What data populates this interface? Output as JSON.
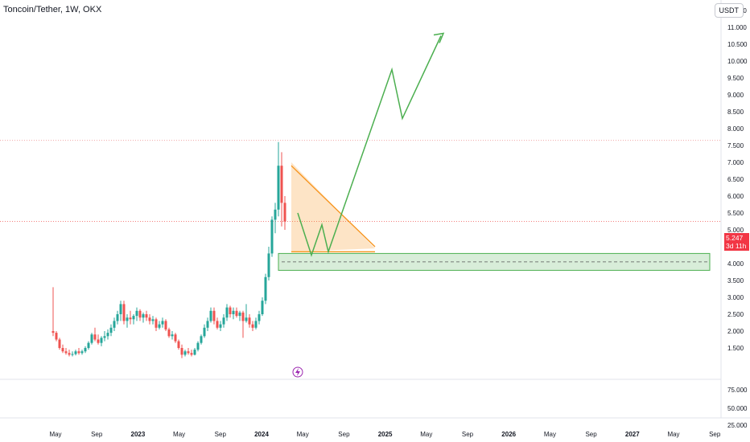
{
  "header": {
    "title": "Toncoin/Tether, 1W, OKX"
  },
  "currency": "USDT",
  "last_price": {
    "value": "5.247",
    "countdown": "3d 11h",
    "color": "#f23645"
  },
  "colors": {
    "up": "#26a69a",
    "down": "#ef5350",
    "triangle": "#f7931a",
    "path": "#4caf50",
    "zone": "#4caf50"
  },
  "chart_data": {
    "type": "candlestick",
    "price_axis": {
      "upper_ticks": [
        "1.500",
        "2.000",
        "2.500",
        "3.000",
        "3.500",
        "4.000",
        "4.500",
        "5.000",
        "5.500",
        "6.000",
        "6.500",
        "7.000",
        "7.500",
        "8.000",
        "8.500",
        "9.000",
        "9.500",
        "10.000",
        "10.500",
        "11.000",
        "11.500"
      ],
      "lower_ticks": [
        "25.000",
        "50.000",
        "75.000"
      ]
    },
    "time_axis": [
      {
        "label": "May"
      },
      {
        "label": "Sep"
      },
      {
        "label": "2023",
        "bold": true
      },
      {
        "label": "May"
      },
      {
        "label": "Sep"
      },
      {
        "label": "2024",
        "bold": true
      },
      {
        "label": "May"
      },
      {
        "label": "Sep"
      },
      {
        "label": "2025",
        "bold": true
      },
      {
        "label": "May"
      },
      {
        "label": "Sep"
      },
      {
        "label": "2026",
        "bold": true
      },
      {
        "label": "May"
      },
      {
        "label": "Sep"
      },
      {
        "label": "2027",
        "bold": true
      },
      {
        "label": "May"
      },
      {
        "label": "Sep"
      }
    ],
    "ohlc": [
      [
        2.0,
        3.3,
        1.85,
        1.95
      ],
      [
        1.95,
        2.0,
        1.7,
        1.75
      ],
      [
        1.75,
        1.8,
        1.45,
        1.5
      ],
      [
        1.5,
        1.6,
        1.35,
        1.4
      ],
      [
        1.4,
        1.5,
        1.3,
        1.35
      ],
      [
        1.35,
        1.45,
        1.25,
        1.3
      ],
      [
        1.3,
        1.4,
        1.25,
        1.32
      ],
      [
        1.32,
        1.45,
        1.28,
        1.4
      ],
      [
        1.4,
        1.5,
        1.3,
        1.35
      ],
      [
        1.35,
        1.45,
        1.3,
        1.4
      ],
      [
        1.4,
        1.55,
        1.35,
        1.5
      ],
      [
        1.5,
        1.7,
        1.45,
        1.65
      ],
      [
        1.65,
        1.95,
        1.6,
        1.9
      ],
      [
        1.9,
        2.1,
        1.7,
        1.75
      ],
      [
        1.75,
        1.9,
        1.6,
        1.65
      ],
      [
        1.65,
        1.85,
        1.55,
        1.8
      ],
      [
        1.8,
        2.0,
        1.7,
        1.85
      ],
      [
        1.85,
        2.05,
        1.75,
        1.95
      ],
      [
        1.95,
        2.2,
        1.85,
        2.1
      ],
      [
        2.1,
        2.4,
        2.0,
        2.3
      ],
      [
        2.3,
        2.6,
        2.2,
        2.5
      ],
      [
        2.5,
        2.9,
        2.3,
        2.8
      ],
      [
        2.8,
        2.9,
        2.2,
        2.3
      ],
      [
        2.3,
        2.5,
        2.1,
        2.4
      ],
      [
        2.4,
        2.6,
        2.2,
        2.35
      ],
      [
        2.35,
        2.5,
        2.2,
        2.45
      ],
      [
        2.45,
        2.7,
        2.3,
        2.6
      ],
      [
        2.6,
        2.65,
        2.3,
        2.4
      ],
      [
        2.4,
        2.55,
        2.25,
        2.5
      ],
      [
        2.5,
        2.6,
        2.3,
        2.4
      ],
      [
        2.4,
        2.5,
        2.2,
        2.3
      ],
      [
        2.3,
        2.45,
        2.2,
        2.35
      ],
      [
        2.35,
        2.4,
        2.0,
        2.1
      ],
      [
        2.1,
        2.3,
        2.05,
        2.2
      ],
      [
        2.2,
        2.4,
        2.1,
        2.3
      ],
      [
        2.3,
        2.35,
        2.0,
        2.05
      ],
      [
        2.05,
        2.1,
        1.8,
        1.85
      ],
      [
        1.85,
        2.0,
        1.75,
        1.9
      ],
      [
        1.9,
        1.95,
        1.65,
        1.7
      ],
      [
        1.7,
        1.75,
        1.45,
        1.5
      ],
      [
        1.5,
        1.6,
        1.2,
        1.3
      ],
      [
        1.3,
        1.45,
        1.25,
        1.4
      ],
      [
        1.4,
        1.5,
        1.3,
        1.35
      ],
      [
        1.35,
        1.45,
        1.25,
        1.3
      ],
      [
        1.3,
        1.5,
        1.28,
        1.45
      ],
      [
        1.45,
        1.7,
        1.4,
        1.65
      ],
      [
        1.65,
        1.9,
        1.6,
        1.85
      ],
      [
        1.85,
        2.2,
        1.8,
        2.1
      ],
      [
        2.1,
        2.4,
        2.0,
        2.3
      ],
      [
        2.3,
        2.7,
        2.25,
        2.6
      ],
      [
        2.6,
        2.7,
        2.2,
        2.3
      ],
      [
        2.3,
        2.4,
        2.05,
        2.1
      ],
      [
        2.1,
        2.3,
        2.0,
        2.2
      ],
      [
        2.2,
        2.5,
        2.1,
        2.4
      ],
      [
        2.4,
        2.8,
        2.3,
        2.7
      ],
      [
        2.7,
        2.75,
        2.4,
        2.5
      ],
      [
        2.5,
        2.7,
        2.35,
        2.6
      ],
      [
        2.6,
        2.7,
        2.4,
        2.45
      ],
      [
        2.45,
        2.6,
        2.3,
        2.55
      ],
      [
        2.55,
        2.6,
        1.8,
        2.3
      ],
      [
        2.3,
        2.8,
        2.25,
        2.4
      ],
      [
        2.4,
        2.5,
        2.1,
        2.2
      ],
      [
        2.2,
        2.3,
        2.0,
        2.1
      ],
      [
        2.1,
        2.4,
        2.05,
        2.3
      ],
      [
        2.3,
        2.6,
        2.2,
        2.5
      ],
      [
        2.5,
        3.0,
        2.45,
        2.9
      ],
      [
        2.9,
        3.7,
        2.8,
        3.6
      ],
      [
        3.6,
        4.5,
        3.5,
        4.3
      ],
      [
        4.3,
        5.4,
        4.2,
        5.3
      ],
      [
        5.3,
        5.8,
        4.9,
        5.6
      ],
      [
        5.6,
        7.6,
        5.4,
        6.9
      ],
      [
        6.9,
        7.3,
        5.1,
        5.8
      ],
      [
        5.8,
        6.0,
        5.0,
        5.247
      ]
    ],
    "triangle": {
      "points": [
        [
          6.8,
          7.0
        ],
        [
          4.45,
          4.45
        ],
        [
          4.45,
          4.35
        ]
      ]
    },
    "support_zone": {
      "low": 3.8,
      "high": 4.3,
      "mid": 4.05
    },
    "projection_path": [
      5.5,
      4.25,
      5.15,
      4.35,
      9.75,
      8.3,
      10.75
    ],
    "horizontal_levels": [
      7.65,
      5.247
    ]
  }
}
